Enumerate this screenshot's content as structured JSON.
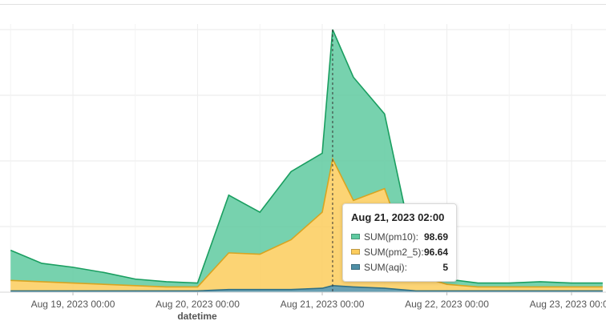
{
  "chart_data": {
    "type": "area",
    "stacked": true,
    "xlabel": "datetime",
    "ylabel": "",
    "x_ticks": [
      "Aug 19, 2023 00:00",
      "Aug 20, 2023 00:00",
      "Aug 21, 2023 00:00",
      "Aug 22, 2023 00:00",
      "Aug 23, 2023 00:00"
    ],
    "grid": true,
    "x": [
      "08-18 12:00",
      "08-18 18:00",
      "08-19 00:00",
      "08-19 06:00",
      "08-19 12:00",
      "08-19 18:00",
      "08-20 00:00",
      "08-20 06:00",
      "08-20 12:00",
      "08-20 18:00",
      "08-21 00:00",
      "08-21 02:00",
      "08-21 06:00",
      "08-21 12:00",
      "08-21 18:00",
      "08-22 00:00",
      "08-22 06:00",
      "08-22 12:00",
      "08-22 18:00",
      "08-23 00:00",
      "08-23 06:00"
    ],
    "series": [
      {
        "name": "SUM(aqi)",
        "color": "#4e8fa6",
        "values": [
          1,
          1,
          1,
          1,
          1,
          1,
          1,
          2,
          2,
          2,
          3,
          5,
          4,
          3,
          1,
          1,
          1,
          1,
          1,
          1,
          1
        ]
      },
      {
        "name": "SUM(pm2_5)",
        "color": "#fccc5c",
        "values": [
          8,
          7,
          6,
          5,
          4,
          3,
          3,
          28,
          27,
          38,
          58,
          96.64,
          66,
          76,
          12,
          5,
          3,
          3,
          3,
          3,
          3
        ]
      },
      {
        "name": "SUM(pm10)",
        "color": "#5fcaa0",
        "values": [
          23,
          14,
          12,
          9,
          5,
          4,
          3,
          44,
          32,
          52,
          45,
          98.69,
          94,
          57,
          12,
          4,
          3,
          3,
          4,
          3,
          3
        ]
      }
    ],
    "tooltip": {
      "title": "Aug 21, 2023 02:00",
      "rows": [
        {
          "name": "SUM(pm10):",
          "value": "98.69",
          "color": "#5fcaa0"
        },
        {
          "name": "SUM(pm2_5):",
          "value": "96.64",
          "color": "#fccc5c"
        },
        {
          "name": "SUM(aqi):",
          "value": "5",
          "color": "#4e8fa6"
        }
      ]
    }
  }
}
